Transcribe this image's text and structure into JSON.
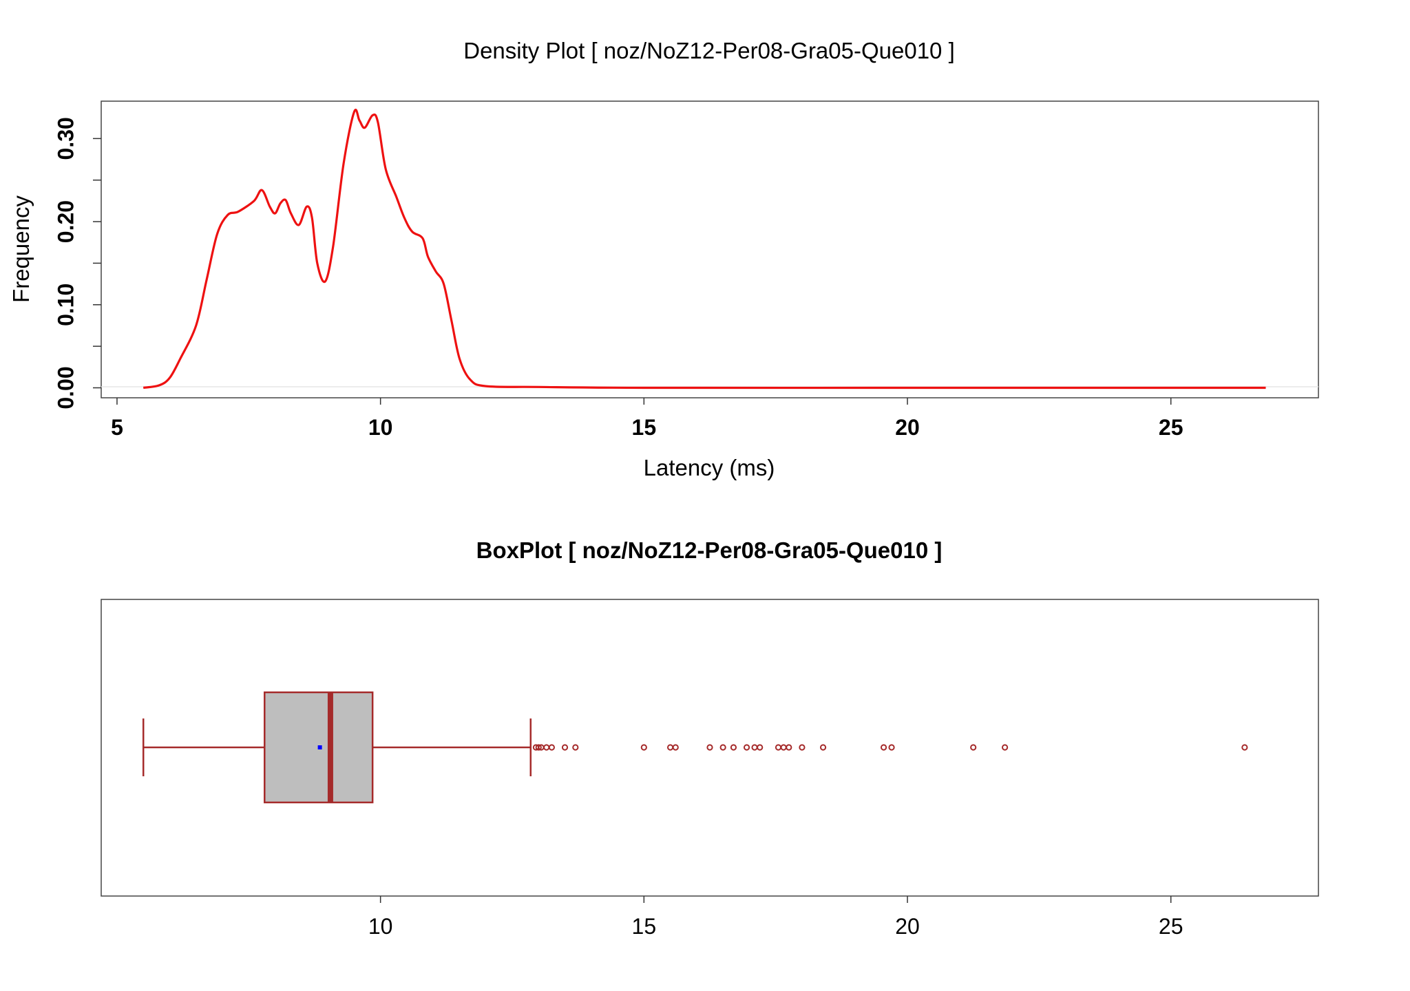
{
  "chart_data": [
    {
      "type": "line",
      "title": "Density Plot [ noz/NoZ12-Per08-Gra05-Que010 ]",
      "xlabel": "Latency (ms)",
      "ylabel": "Frequency",
      "xlim": [
        4.7,
        27.8
      ],
      "ylim": [
        -0.012,
        0.345
      ],
      "x_ticks": [
        5,
        10,
        15,
        20,
        25
      ],
      "y_ticks": [
        0.0,
        0.1,
        0.2,
        0.3
      ],
      "y_tick_labels": [
        "0.00",
        "0.10",
        "0.20",
        "0.30"
      ],
      "y_minor_ticks": [
        0.05,
        0.15,
        0.25
      ],
      "line_color": "#ee1111",
      "series": [
        {
          "x": [
            5.5,
            5.8,
            6.0,
            6.2,
            6.5,
            6.7,
            6.9,
            7.1,
            7.3,
            7.6,
            7.75,
            7.9,
            8.0,
            8.1,
            8.2,
            8.3,
            8.45,
            8.6,
            8.7,
            8.8,
            8.95,
            9.1,
            9.3,
            9.5,
            9.6,
            9.7,
            9.85,
            9.95,
            10.1,
            10.3,
            10.45,
            10.6,
            10.8,
            10.9,
            11.05,
            11.2,
            11.35,
            11.5,
            11.7,
            12.0,
            13.0,
            15.0,
            20.0,
            25.0,
            26.8
          ],
          "y": [
            0.0,
            0.003,
            0.012,
            0.035,
            0.075,
            0.13,
            0.185,
            0.208,
            0.212,
            0.225,
            0.238,
            0.218,
            0.21,
            0.222,
            0.226,
            0.21,
            0.196,
            0.218,
            0.205,
            0.15,
            0.128,
            0.17,
            0.27,
            0.332,
            0.322,
            0.313,
            0.328,
            0.32,
            0.263,
            0.23,
            0.205,
            0.188,
            0.18,
            0.158,
            0.14,
            0.125,
            0.08,
            0.035,
            0.01,
            0.002,
            0.001,
            0.0,
            0.0,
            0.0,
            0.0
          ]
        }
      ]
    },
    {
      "type": "box",
      "title": "BoxPlot [ noz/NoZ12-Per08-Gra05-Que010 ]",
      "xlim": [
        4.7,
        27.8
      ],
      "x_ticks": [
        10,
        15,
        20,
        25
      ],
      "box_fill": "#bebebe",
      "box_color": "#a52a2a",
      "mean_color": "#0000ff",
      "whisker_low": 5.5,
      "q1": 7.8,
      "median": 9.05,
      "q3": 9.85,
      "whisker_high": 12.85,
      "mean": 8.85,
      "outliers": [
        12.95,
        13.0,
        13.05,
        13.15,
        13.25,
        13.5,
        13.7,
        15.0,
        15.5,
        15.6,
        16.25,
        16.5,
        16.7,
        16.95,
        17.1,
        17.2,
        17.55,
        17.65,
        17.75,
        18.0,
        18.4,
        19.55,
        19.7,
        21.25,
        21.85,
        26.4
      ]
    }
  ]
}
